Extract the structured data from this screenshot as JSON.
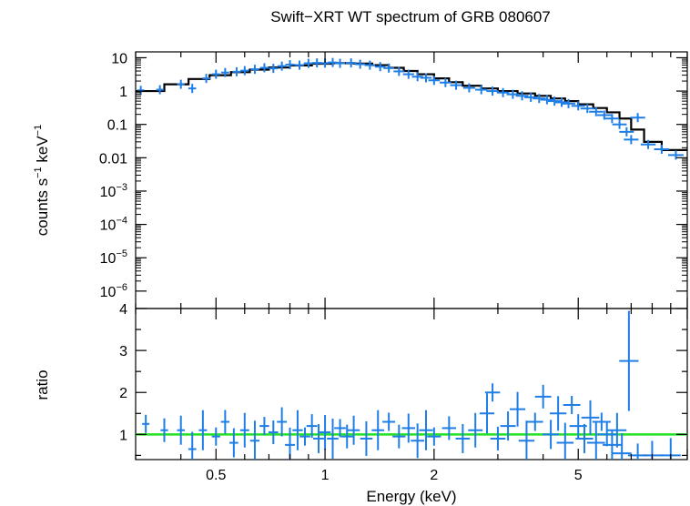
{
  "chart_data": [
    {
      "panel": "spectrum",
      "type": "scatter",
      "title": "Swift−XRT WT spectrum of GRB 080607",
      "xlabel": "Energy (keV)",
      "ylabel_parts": [
        "counts s",
        "−1",
        " keV",
        "−1"
      ],
      "xscale": "log",
      "yscale": "log",
      "xlim": [
        0.3,
        10
      ],
      "ylim": [
        3e-07,
        15
      ],
      "ytick_labels": [
        {
          "value": 10,
          "base": "10"
        },
        {
          "value": 1,
          "base": "1"
        },
        {
          "value": 0.1,
          "base": "0.1"
        },
        {
          "value": 0.01,
          "base": "0.01"
        },
        {
          "value": 0.001,
          "base": "10",
          "exp": "−3"
        },
        {
          "value": 0.0001,
          "base": "10",
          "exp": "−4"
        },
        {
          "value": 1e-05,
          "base": "10",
          "exp": "−5"
        },
        {
          "value": 1e-06,
          "base": "10",
          "exp": "−6"
        }
      ],
      "data_color": "#1e7ee6",
      "model_color": "#000000",
      "data_points": [
        [
          0.31,
          1.05
        ],
        [
          0.35,
          1.1
        ],
        [
          0.4,
          1.6
        ],
        [
          0.43,
          1.2
        ],
        [
          0.47,
          2.4
        ],
        [
          0.5,
          3.2
        ],
        [
          0.53,
          3.6
        ],
        [
          0.57,
          3.8
        ],
        [
          0.6,
          4.1
        ],
        [
          0.64,
          4.5
        ],
        [
          0.68,
          5.0
        ],
        [
          0.72,
          4.8
        ],
        [
          0.76,
          5.6
        ],
        [
          0.8,
          6.2
        ],
        [
          0.85,
          6.0
        ],
        [
          0.9,
          6.8
        ],
        [
          0.95,
          7.0
        ],
        [
          1.0,
          6.9
        ],
        [
          1.05,
          7.2
        ],
        [
          1.1,
          6.8
        ],
        [
          1.18,
          7.0
        ],
        [
          1.25,
          6.4
        ],
        [
          1.33,
          6.0
        ],
        [
          1.42,
          5.4
        ],
        [
          1.5,
          4.9
        ],
        [
          1.6,
          3.9
        ],
        [
          1.7,
          3.2
        ],
        [
          1.8,
          2.7
        ],
        [
          1.9,
          2.5
        ],
        [
          2.0,
          2.1
        ],
        [
          2.15,
          1.8
        ],
        [
          2.3,
          1.5
        ],
        [
          2.5,
          1.25
        ],
        [
          2.7,
          1.1
        ],
        [
          2.9,
          1.0
        ],
        [
          3.1,
          0.9
        ],
        [
          3.3,
          0.8
        ],
        [
          3.5,
          0.72
        ],
        [
          3.7,
          0.65
        ],
        [
          3.9,
          0.6
        ],
        [
          4.1,
          0.55
        ],
        [
          4.3,
          0.5
        ],
        [
          4.5,
          0.46
        ],
        [
          4.7,
          0.42
        ],
        [
          5.0,
          0.36
        ],
        [
          5.3,
          0.3
        ],
        [
          5.6,
          0.24
        ],
        [
          5.9,
          0.19
        ],
        [
          6.2,
          0.15
        ],
        [
          6.5,
          0.1
        ],
        [
          6.8,
          0.06
        ],
        [
          7.0,
          0.035
        ],
        [
          7.3,
          0.16
        ],
        [
          7.8,
          0.025
        ],
        [
          8.5,
          0.018
        ],
        [
          9.3,
          0.012
        ]
      ],
      "model_steps": [
        [
          0.3,
          1.0
        ],
        [
          0.36,
          1.6
        ],
        [
          0.42,
          2.3
        ],
        [
          0.48,
          3.0
        ],
        [
          0.55,
          3.7
        ],
        [
          0.62,
          4.4
        ],
        [
          0.7,
          5.1
        ],
        [
          0.8,
          5.9
        ],
        [
          0.92,
          6.6
        ],
        [
          1.05,
          6.9
        ],
        [
          1.2,
          6.7
        ],
        [
          1.35,
          6.0
        ],
        [
          1.5,
          5.0
        ],
        [
          1.65,
          4.0
        ],
        [
          1.8,
          3.2
        ],
        [
          2.0,
          2.4
        ],
        [
          2.2,
          1.85
        ],
        [
          2.4,
          1.45
        ],
        [
          2.7,
          1.2
        ],
        [
          3.0,
          1.0
        ],
        [
          3.4,
          0.85
        ],
        [
          3.8,
          0.72
        ],
        [
          4.2,
          0.6
        ],
        [
          4.6,
          0.5
        ],
        [
          5.0,
          0.4
        ],
        [
          5.5,
          0.31
        ],
        [
          6.0,
          0.23
        ],
        [
          6.5,
          0.15
        ],
        [
          7.0,
          0.07
        ],
        [
          7.6,
          0.03
        ],
        [
          8.5,
          0.017
        ],
        [
          10.0,
          0.017
        ]
      ]
    },
    {
      "panel": "ratio",
      "type": "scatter",
      "xlabel": "Energy (keV)",
      "ylabel": "ratio",
      "xscale": "log",
      "xlim": [
        0.3,
        10
      ],
      "ylim": [
        0.4,
        4
      ],
      "ytick_labels": [
        {
          "value": 1,
          "label": "1"
        },
        {
          "value": 2,
          "label": "2"
        },
        {
          "value": 3,
          "label": "3"
        },
        {
          "value": 4,
          "label": "4"
        }
      ],
      "xtick_labels": [
        {
          "value": 0.5,
          "label": "0.5"
        },
        {
          "value": 1,
          "label": "1"
        },
        {
          "value": 2,
          "label": "2"
        },
        {
          "value": 5,
          "label": "5"
        }
      ],
      "reference_line": 1.0,
      "reference_color": "#22e022",
      "data_color": "#1e7ee6",
      "data_points": [
        [
          0.32,
          1.25
        ],
        [
          0.36,
          1.1
        ],
        [
          0.4,
          1.1
        ],
        [
          0.43,
          0.65
        ],
        [
          0.46,
          1.1
        ],
        [
          0.5,
          0.95
        ],
        [
          0.53,
          1.3
        ],
        [
          0.56,
          0.8
        ],
        [
          0.6,
          1.1
        ],
        [
          0.64,
          0.85
        ],
        [
          0.68,
          1.2
        ],
        [
          0.72,
          1.05
        ],
        [
          0.76,
          1.3
        ],
        [
          0.8,
          0.75
        ],
        [
          0.84,
          1.1
        ],
        [
          0.88,
          0.95
        ],
        [
          0.92,
          1.2
        ],
        [
          0.96,
          0.9
        ],
        [
          1.0,
          1.05
        ],
        [
          1.05,
          0.9
        ],
        [
          1.1,
          1.15
        ],
        [
          1.15,
          0.95
        ],
        [
          1.2,
          1.1
        ],
        [
          1.3,
          0.9
        ],
        [
          1.4,
          1.1
        ],
        [
          1.5,
          1.3
        ],
        [
          1.6,
          0.95
        ],
        [
          1.7,
          1.15
        ],
        [
          1.8,
          0.85
        ],
        [
          1.9,
          1.1
        ],
        [
          2.0,
          0.95
        ],
        [
          2.2,
          1.15
        ],
        [
          2.4,
          0.9
        ],
        [
          2.6,
          1.1
        ],
        [
          2.8,
          1.5
        ],
        [
          2.9,
          2.0
        ],
        [
          3.0,
          0.9
        ],
        [
          3.2,
          1.2
        ],
        [
          3.4,
          1.6
        ],
        [
          3.6,
          0.85
        ],
        [
          3.8,
          1.3
        ],
        [
          4.0,
          1.9
        ],
        [
          4.2,
          1.0
        ],
        [
          4.4,
          1.5
        ],
        [
          4.6,
          0.8
        ],
        [
          4.8,
          1.7
        ],
        [
          5.0,
          1.2
        ],
        [
          5.2,
          0.9
        ],
        [
          5.4,
          1.4
        ],
        [
          5.6,
          0.8
        ],
        [
          5.8,
          1.3
        ],
        [
          6.0,
          1.0
        ],
        [
          6.2,
          0.75
        ],
        [
          6.4,
          1.1
        ],
        [
          6.6,
          0.55
        ],
        [
          6.9,
          2.75
        ],
        [
          7.3,
          0.5
        ],
        [
          8.0,
          0.5
        ],
        [
          9.0,
          0.5
        ]
      ]
    }
  ]
}
